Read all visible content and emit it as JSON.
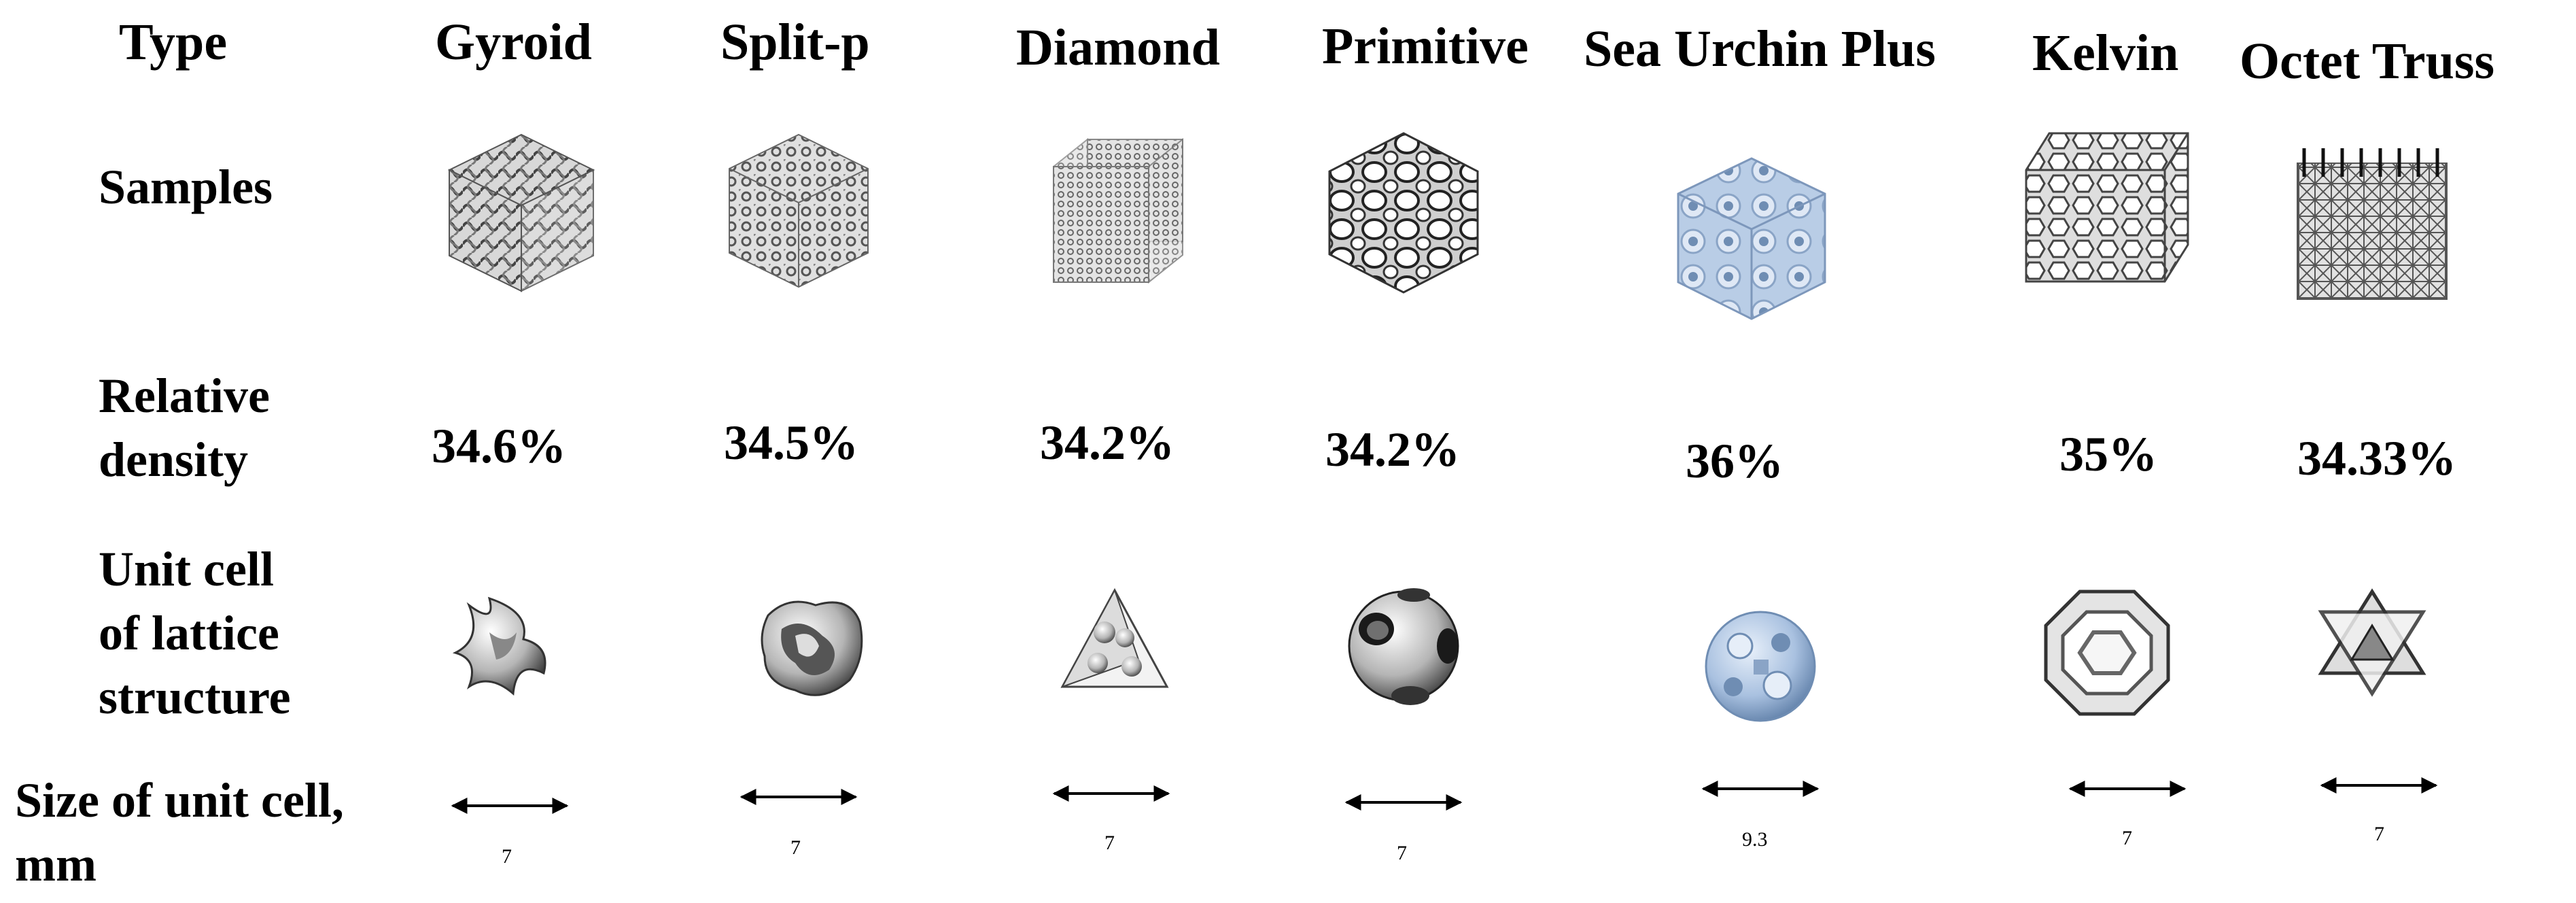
{
  "headers": {
    "type": "Type",
    "columns": [
      "Gyroid",
      "Split-p",
      "Diamond",
      "Primitive",
      "Sea Urchin Plus",
      "Kelvin",
      "Octet Truss"
    ]
  },
  "row_labels": {
    "samples": "Samples",
    "density": [
      "Relative",
      "density"
    ],
    "unit_cell": [
      "Unit cell",
      "of lattice",
      "structure"
    ],
    "size": [
      "Size of unit cell,",
      "mm"
    ]
  },
  "densities": [
    "34.6%",
    "34.5%",
    "34.2%",
    "34.2%",
    "36%",
    "35%",
    "34.33%"
  ],
  "sizes": [
    "7",
    "7",
    "7",
    "7",
    "9.3",
    "7",
    "7"
  ],
  "icons": {
    "samples": [
      "gyroid-sample-cube",
      "split-p-sample-cube",
      "diamond-sample-cube",
      "primitive-sample-cube",
      "sea-urchin-plus-sample-cube",
      "kelvin-sample-cube",
      "octet-truss-sample-cube"
    ],
    "unit_cells": [
      "gyroid-unit-cell",
      "split-p-unit-cell",
      "diamond-unit-cell",
      "primitive-unit-cell",
      "sea-urchin-plus-unit-cell",
      "kelvin-unit-cell",
      "octet-truss-unit-cell"
    ]
  },
  "colors": {
    "text": "#000000",
    "gray_fill": "#c9c9c9",
    "gray_dark": "#555555",
    "blue_fill": "#b9cde6",
    "blue_dark": "#6f8db3"
  }
}
